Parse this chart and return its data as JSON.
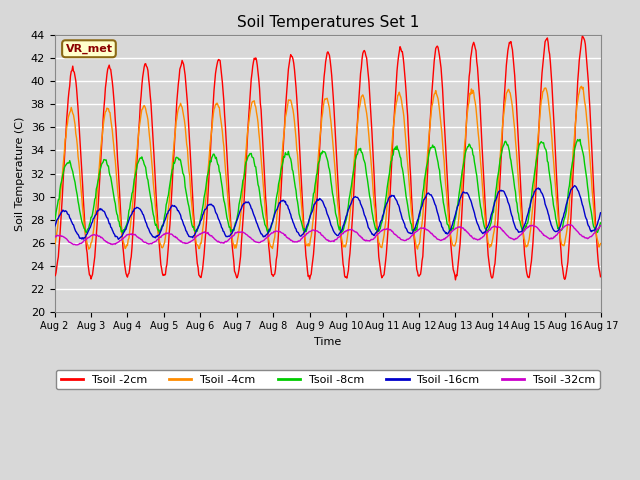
{
  "title": "Soil Temperatures Set 1",
  "xlabel": "Time",
  "ylabel": "Soil Temperature (C)",
  "ylim": [
    20,
    44
  ],
  "yticks": [
    20,
    22,
    24,
    26,
    28,
    30,
    32,
    34,
    36,
    38,
    40,
    42,
    44
  ],
  "bg_color": "#d8d8d8",
  "grid_color": "#ffffff",
  "annotation_text": "VR_met",
  "annotation_color": "#8b0000",
  "annotation_bg": "#ffffcc",
  "annotation_border": "#8b6914",
  "series_colors": {
    "Tsoil -2cm": "#ff0000",
    "Tsoil -4cm": "#ff8c00",
    "Tsoil -8cm": "#00cc00",
    "Tsoil -16cm": "#0000cc",
    "Tsoil -32cm": "#cc00cc"
  },
  "lw": 1.0,
  "num_days": 15,
  "samples_per_day": 48
}
